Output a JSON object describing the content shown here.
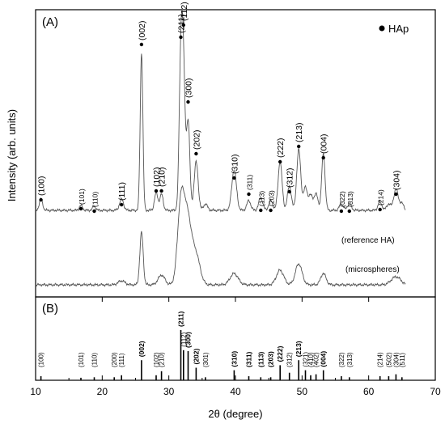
{
  "chart_data": [
    {
      "type": "line",
      "panel_label": "(A)",
      "xlabel": "2θ (degree)",
      "ylabel": "Intensity (arb. units)",
      "xlim": [
        10,
        70
      ],
      "legend": {
        "marker": "•",
        "label": "HAp",
        "placement": "top-right"
      },
      "series": [
        {
          "name": "(reference HA)"
        },
        {
          "name": "(microspheres)"
        }
      ],
      "peaks": [
        {
          "x": 10.8,
          "label": "(100)",
          "size": "normal"
        },
        {
          "x": 16.8,
          "label": "(101)",
          "size": "small"
        },
        {
          "x": 18.8,
          "label": "(110)",
          "size": "small"
        },
        {
          "x": 22.9,
          "label": "(111)",
          "size": "normal"
        },
        {
          "x": 25.9,
          "label": "(002)",
          "size": "normal"
        },
        {
          "x": 28.1,
          "label": "(102)",
          "size": "normal"
        },
        {
          "x": 28.9,
          "label": "(210)",
          "size": "normal"
        },
        {
          "x": 31.8,
          "label": "(211)",
          "size": "normal"
        },
        {
          "x": 32.2,
          "label": "(112)",
          "size": "normal"
        },
        {
          "x": 32.9,
          "label": "(300)",
          "size": "normal"
        },
        {
          "x": 34.1,
          "label": "(202)",
          "size": "normal"
        },
        {
          "x": 39.8,
          "label": "(310)",
          "size": "normal"
        },
        {
          "x": 42.0,
          "label": "(311)",
          "size": "small"
        },
        {
          "x": 43.8,
          "label": "(113)",
          "size": "small"
        },
        {
          "x": 45.3,
          "label": "(203)",
          "size": "small"
        },
        {
          "x": 46.7,
          "label": "(222)",
          "size": "normal"
        },
        {
          "x": 48.1,
          "label": "(312)",
          "size": "normal"
        },
        {
          "x": 49.5,
          "label": "(213)",
          "size": "normal"
        },
        {
          "x": 53.2,
          "label": "(004)",
          "size": "normal"
        },
        {
          "x": 55.9,
          "label": "(322)",
          "size": "small"
        },
        {
          "x": 57.1,
          "label": "(313)",
          "size": "small"
        },
        {
          "x": 61.7,
          "label": "(214)",
          "size": "small"
        },
        {
          "x": 64.1,
          "label": "(304)",
          "size": "normal"
        }
      ]
    },
    {
      "type": "bar",
      "panel_label": "(B)",
      "xlabel": "2θ (degree)",
      "xlim": [
        10,
        70
      ],
      "xticks": [
        10,
        20,
        30,
        40,
        50,
        60,
        70
      ],
      "reflections": [
        {
          "x": 10.8,
          "h": 0.08,
          "label": "(100)",
          "bold": false
        },
        {
          "x": 16.8,
          "h": 0.05,
          "label": "(101)",
          "bold": false
        },
        {
          "x": 18.8,
          "h": 0.06,
          "label": "(110)",
          "bold": false
        },
        {
          "x": 21.8,
          "h": 0.06,
          "label": "(200)",
          "bold": false
        },
        {
          "x": 22.9,
          "h": 0.1,
          "label": "(111)",
          "bold": false
        },
        {
          "x": 25.9,
          "h": 0.4,
          "label": "(002)",
          "bold": true
        },
        {
          "x": 28.1,
          "h": 0.1,
          "label": "(102)",
          "bold": false
        },
        {
          "x": 28.9,
          "h": 0.18,
          "label": "(210)",
          "bold": false
        },
        {
          "x": 31.8,
          "h": 1.0,
          "label": "(211)",
          "bold": true
        },
        {
          "x": 32.2,
          "h": 0.6,
          "label": "(112)",
          "bold": false
        },
        {
          "x": 32.9,
          "h": 0.58,
          "label": "(300)",
          "bold": true
        },
        {
          "x": 34.1,
          "h": 0.25,
          "label": "(202)",
          "bold": true
        },
        {
          "x": 35.5,
          "h": 0.06,
          "label": "(301)",
          "bold": false
        },
        {
          "x": 39.8,
          "h": 0.2,
          "label": "(310)",
          "bold": true
        },
        {
          "x": 42.0,
          "h": 0.08,
          "label": "(311)",
          "bold": true
        },
        {
          "x": 43.8,
          "h": 0.06,
          "label": "(113)",
          "bold": true
        },
        {
          "x": 45.3,
          "h": 0.06,
          "label": "(203)",
          "bold": true
        },
        {
          "x": 46.7,
          "h": 0.3,
          "label": "(222)",
          "bold": true
        },
        {
          "x": 48.1,
          "h": 0.15,
          "label": "(312)",
          "bold": false
        },
        {
          "x": 49.5,
          "h": 0.4,
          "label": "(213)",
          "bold": true
        },
        {
          "x": 50.5,
          "h": 0.2,
          "label": "(321)",
          "bold": false
        },
        {
          "x": 51.3,
          "h": 0.1,
          "label": "(410)",
          "bold": false
        },
        {
          "x": 52.1,
          "h": 0.12,
          "label": "(402)",
          "bold": false
        },
        {
          "x": 53.2,
          "h": 0.2,
          "label": "(004)",
          "bold": true
        },
        {
          "x": 55.9,
          "h": 0.08,
          "label": "(322)",
          "bold": false
        },
        {
          "x": 57.1,
          "h": 0.06,
          "label": "(313)",
          "bold": false
        },
        {
          "x": 61.7,
          "h": 0.08,
          "label": "(214)",
          "bold": false
        },
        {
          "x": 63.0,
          "h": 0.08,
          "label": "(502)",
          "bold": false
        },
        {
          "x": 64.1,
          "h": 0.12,
          "label": "(304)",
          "bold": false
        },
        {
          "x": 65.0,
          "h": 0.06,
          "label": "(511)",
          "bold": false
        }
      ]
    }
  ]
}
